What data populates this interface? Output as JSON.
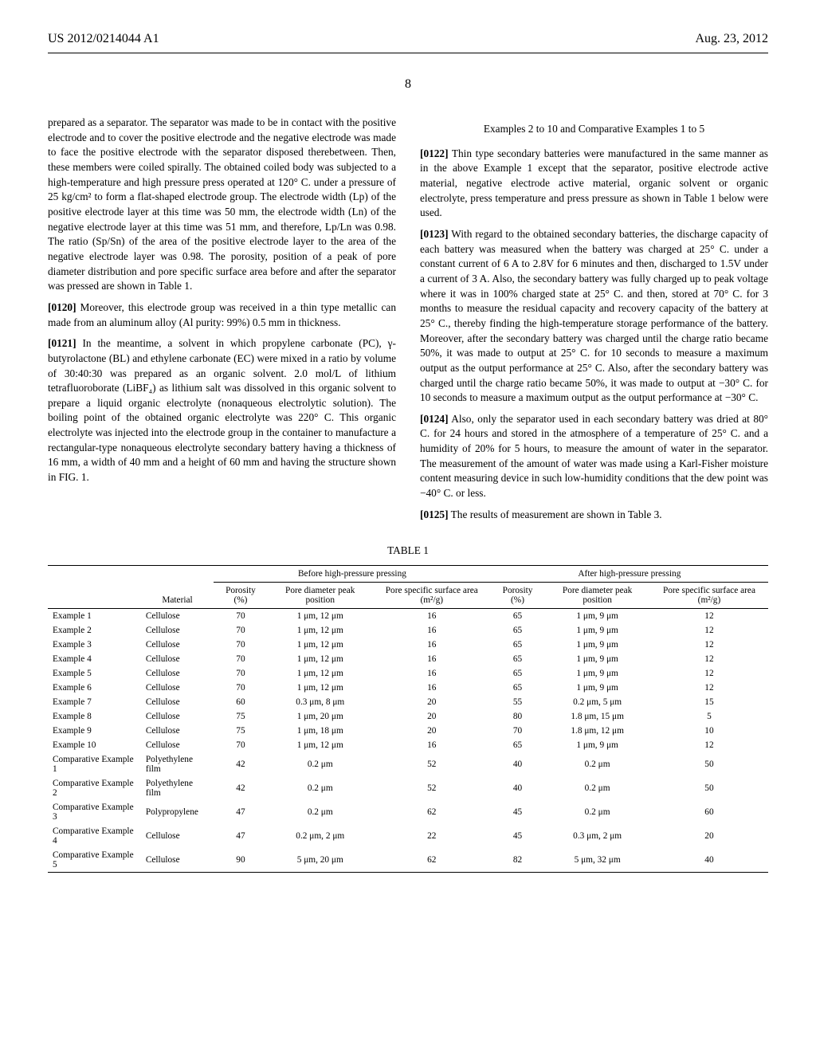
{
  "header": {
    "left": "US 2012/0214044 A1",
    "right": "Aug. 23, 2012"
  },
  "page_number": "8",
  "left_column": {
    "para_continuation": "prepared as a separator. The separator was made to be in contact with the positive electrode and to cover the positive electrode and the negative electrode was made to face the positive electrode with the separator disposed therebetween. Then, these members were coiled spirally. The obtained coiled body was subjected to a high-temperature and high pressure press operated at 120° C. under a pressure of 25 kg/cm² to form a flat-shaped electrode group. The electrode width (Lp) of the positive electrode layer at this time was 50 mm, the electrode width (Ln) of the negative electrode layer at this time was 51 mm, and therefore, Lp/Ln was 0.98. The ratio (Sp/Sn) of the area of the positive electrode layer to the area of the negative electrode layer was 0.98. The porosity, position of a peak of pore diameter distribution and pore specific surface area before and after the separator was pressed are shown in Table 1.",
    "para_0120_num": "[0120]",
    "para_0120": "Moreover, this electrode group was received in a thin type metallic can made from an aluminum alloy (Al purity: 99%) 0.5 mm in thickness.",
    "para_0121_num": "[0121]",
    "para_0121": "In the meantime, a solvent in which propylene carbonate (PC), γ-butyrolactone (BL) and ethylene carbonate (EC) were mixed in a ratio by volume of 30:40:30 was prepared as an organic solvent. 2.0 mol/L of lithium tetrafluoroborate (LiBF₄) as lithium salt was dissolved in this organic solvent to prepare a liquid organic electrolyte (nonaqueous electrolytic solution). The boiling point of the obtained organic electrolyte was 220° C. This organic electrolyte was injected into the electrode group in the container to manufacture a rectangular-type nonaqueous electrolyte secondary battery having a thickness of 16 mm, a width of 40 mm and a height of 60 mm and having the structure shown in FIG. 1."
  },
  "right_column": {
    "examples_title": "Examples 2 to 10 and Comparative Examples 1 to 5",
    "para_0122_num": "[0122]",
    "para_0122": "Thin type secondary batteries were manufactured in the same manner as in the above Example 1 except that the separator, positive electrode active material, negative electrode active material, organic solvent or organic electrolyte, press temperature and press pressure as shown in Table 1 below were used.",
    "para_0123_num": "[0123]",
    "para_0123": "With regard to the obtained secondary batteries, the discharge capacity of each battery was measured when the battery was charged at 25° C. under a constant current of 6 A to 2.8V for 6 minutes and then, discharged to 1.5V under a current of 3 A. Also, the secondary battery was fully charged up to peak voltage where it was in 100% charged state at 25° C. and then, stored at 70° C. for 3 months to measure the residual capacity and recovery capacity of the battery at 25° C., thereby finding the high-temperature storage performance of the battery. Moreover, after the secondary battery was charged until the charge ratio became 50%, it was made to output at 25° C. for 10 seconds to measure a maximum output as the output performance at 25° C. Also, after the secondary battery was charged until the charge ratio became 50%, it was made to output at −30° C. for 10 seconds to measure a maximum output as the output performance at −30° C.",
    "para_0124_num": "[0124]",
    "para_0124": "Also, only the separator used in each secondary battery was dried at 80° C. for 24 hours and stored in the atmosphere of a temperature of 25° C. and a humidity of 20% for 5 hours, to measure the amount of water in the separator. The measurement of the amount of water was made using a Karl-Fisher moisture content measuring device in such low-humidity conditions that the dew point was −40° C. or less.",
    "para_0125_num": "[0125]",
    "para_0125": "The results of measurement are shown in Table 3."
  },
  "table": {
    "caption": "TABLE 1",
    "group_headers": {
      "before": "Before high-pressure pressing",
      "after": "After high-pressure pressing"
    },
    "headers": {
      "material": "Material",
      "porosity_before": "Porosity (%)",
      "pore_diameter_before": "Pore diameter peak position",
      "surface_area_before": "Pore specific surface area (m²/g)",
      "porosity_after": "Porosity (%)",
      "pore_diameter_after": "Pore diameter peak position",
      "surface_area_after": "Pore specific surface area (m²/g)"
    },
    "rows": [
      {
        "label": "Example 1",
        "material": "Cellulose",
        "p_before": "70",
        "pd_before": "1 μm, 12 μm",
        "sa_before": "16",
        "p_after": "65",
        "pd_after": "1 μm, 9 μm",
        "sa_after": "12"
      },
      {
        "label": "Example 2",
        "material": "Cellulose",
        "p_before": "70",
        "pd_before": "1 μm, 12 μm",
        "sa_before": "16",
        "p_after": "65",
        "pd_after": "1 μm, 9 μm",
        "sa_after": "12"
      },
      {
        "label": "Example 3",
        "material": "Cellulose",
        "p_before": "70",
        "pd_before": "1 μm, 12 μm",
        "sa_before": "16",
        "p_after": "65",
        "pd_after": "1 μm, 9 μm",
        "sa_after": "12"
      },
      {
        "label": "Example 4",
        "material": "Cellulose",
        "p_before": "70",
        "pd_before": "1 μm, 12 μm",
        "sa_before": "16",
        "p_after": "65",
        "pd_after": "1 μm, 9 μm",
        "sa_after": "12"
      },
      {
        "label": "Example 5",
        "material": "Cellulose",
        "p_before": "70",
        "pd_before": "1 μm, 12 μm",
        "sa_before": "16",
        "p_after": "65",
        "pd_after": "1 μm, 9 μm",
        "sa_after": "12"
      },
      {
        "label": "Example 6",
        "material": "Cellulose",
        "p_before": "70",
        "pd_before": "1 μm, 12 μm",
        "sa_before": "16",
        "p_after": "65",
        "pd_after": "1 μm, 9 μm",
        "sa_after": "12"
      },
      {
        "label": "Example 7",
        "material": "Cellulose",
        "p_before": "60",
        "pd_before": "0.3 μm, 8 μm",
        "sa_before": "20",
        "p_after": "55",
        "pd_after": "0.2 μm, 5 μm",
        "sa_after": "15"
      },
      {
        "label": "Example 8",
        "material": "Cellulose",
        "p_before": "75",
        "pd_before": "1 μm, 20 μm",
        "sa_before": "20",
        "p_after": "80",
        "pd_after": "1.8 μm, 15 μm",
        "sa_after": "5"
      },
      {
        "label": "Example 9",
        "material": "Cellulose",
        "p_before": "75",
        "pd_before": "1 μm, 18 μm",
        "sa_before": "20",
        "p_after": "70",
        "pd_after": "1.8 μm, 12 μm",
        "sa_after": "10"
      },
      {
        "label": "Example 10",
        "material": "Cellulose",
        "p_before": "70",
        "pd_before": "1 μm, 12 μm",
        "sa_before": "16",
        "p_after": "65",
        "pd_after": "1 μm, 9 μm",
        "sa_after": "12"
      },
      {
        "label": "Comparative Example 1",
        "material": "Polyethylene film",
        "p_before": "42",
        "pd_before": "0.2 μm",
        "sa_before": "52",
        "p_after": "40",
        "pd_after": "0.2 μm",
        "sa_after": "50"
      },
      {
        "label": "Comparative Example 2",
        "material": "Polyethylene film",
        "p_before": "42",
        "pd_before": "0.2 μm",
        "sa_before": "52",
        "p_after": "40",
        "pd_after": "0.2 μm",
        "sa_after": "50"
      },
      {
        "label": "Comparative Example 3",
        "material": "Polypropylene",
        "p_before": "47",
        "pd_before": "0.2 μm",
        "sa_before": "62",
        "p_after": "45",
        "pd_after": "0.2 μm",
        "sa_after": "60"
      },
      {
        "label": "Comparative Example 4",
        "material": "Cellulose",
        "p_before": "47",
        "pd_before": "0.2 μm, 2 μm",
        "sa_before": "22",
        "p_after": "45",
        "pd_after": "0.3 μm, 2 μm",
        "sa_after": "20"
      },
      {
        "label": "Comparative Example 5",
        "material": "Cellulose",
        "p_before": "90",
        "pd_before": "5 μm, 20 μm",
        "sa_before": "62",
        "p_after": "82",
        "pd_after": "5 μm, 32 μm",
        "sa_after": "40"
      }
    ]
  }
}
